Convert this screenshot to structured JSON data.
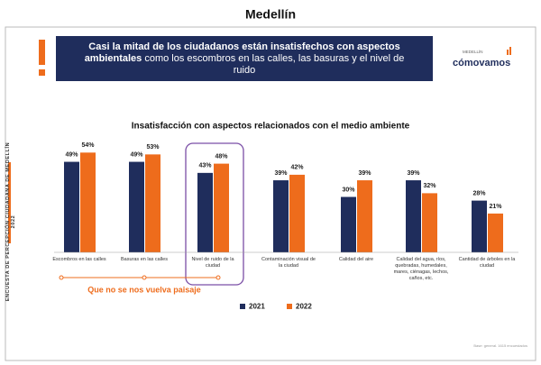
{
  "header": {
    "title": "Medellín"
  },
  "banner": {
    "bold": "Casi la mitad de los ciudadanos están insatisfechos con aspectos ambientales",
    "text": "como los escombros en las calles, las basuras y el nivel de ruido"
  },
  "logo": {
    "top": "MEDELLÍN",
    "name": "cómovamos"
  },
  "side_text": "ENCUESTA DE PERCEPCIÓN CIUDADANA DE MEDELLÍN 2022",
  "chart_data": {
    "type": "bar",
    "title": "Insatisfacción con aspectos relacionados con el medio ambiente",
    "categories": [
      "Escombros en las calles",
      "Basuras en las calles",
      "Nivel de ruido de la ciudad",
      "Contaminación visual de la ciudad",
      "Calidad del aire",
      "Calidad del agua, ríos, quebradas, humedales, mares, ciénagas, lechos, caños, etc.",
      "Cantidad de árboles en la ciudad"
    ],
    "series": [
      {
        "name": "2021",
        "color": "#1f2d5c",
        "values": [
          49,
          49,
          43,
          39,
          30,
          39,
          28
        ],
        "value_labels": [
          "49%",
          "49%",
          "43%",
          "39%",
          "30%",
          "39%",
          "28%"
        ]
      },
      {
        "name": "2022",
        "color": "#ee6c1c",
        "values": [
          54,
          53,
          48,
          42,
          39,
          32,
          21
        ],
        "value_labels": [
          "54%",
          "53%",
          "48%",
          "42%",
          "39%",
          "32%",
          "21%"
        ]
      }
    ],
    "annotation": "Que no se nos vuelva paisaje"
  },
  "footer": "Base: general. 1615 encuestados"
}
